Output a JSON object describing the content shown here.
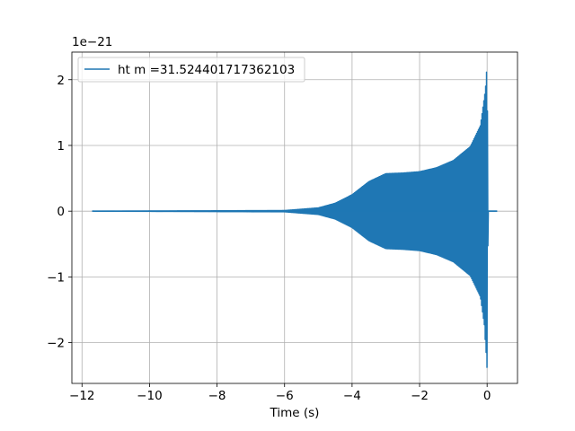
{
  "chart_data": {
    "type": "line",
    "title": "",
    "xlabel": "Time (s)",
    "ylabel": "",
    "y_offset_label": "1e−21",
    "y_scale_exponent": -21,
    "xlim": [
      -12.3,
      0.9
    ],
    "ylim": [
      -2.62,
      2.42
    ],
    "grid": true,
    "legend_placement": "upper-left",
    "x_ticks": [
      -12,
      -10,
      -8,
      -6,
      -4,
      -2,
      0
    ],
    "x_tick_labels": [
      "−12",
      "−10",
      "−8",
      "−6",
      "−4",
      "−2",
      "0"
    ],
    "y_ticks": [
      -2,
      -1,
      0,
      1,
      2
    ],
    "y_tick_labels": [
      "−2",
      "−1",
      "0",
      "1",
      "2"
    ],
    "series": [
      {
        "name": "ht m =31.524401717362103",
        "color": "#1f77b4",
        "x_range": [
          -11.7,
          0.3
        ],
        "merger_time": 0.0,
        "envelope": [
          {
            "x": -11.7,
            "amp": 0.0
          },
          {
            "x": -6.0,
            "amp": 0.01
          },
          {
            "x": -5.0,
            "amp": 0.05
          },
          {
            "x": -4.5,
            "amp": 0.12
          },
          {
            "x": -4.0,
            "amp": 0.25
          },
          {
            "x": -3.5,
            "amp": 0.45
          },
          {
            "x": -3.0,
            "amp": 0.57
          },
          {
            "x": -2.5,
            "amp": 0.58
          },
          {
            "x": -2.0,
            "amp": 0.6
          },
          {
            "x": -1.5,
            "amp": 0.66
          },
          {
            "x": -1.0,
            "amp": 0.77
          },
          {
            "x": -0.5,
            "amp": 0.98
          },
          {
            "x": -0.2,
            "amp": 1.3
          },
          {
            "x": -0.05,
            "amp": 1.85
          },
          {
            "x": 0.0,
            "amp": 2.25
          },
          {
            "x": 0.03,
            "amp": 0.0
          },
          {
            "x": 0.3,
            "amp": 0.0
          }
        ],
        "min_value": -2.4,
        "max_value": 2.22
      }
    ]
  }
}
